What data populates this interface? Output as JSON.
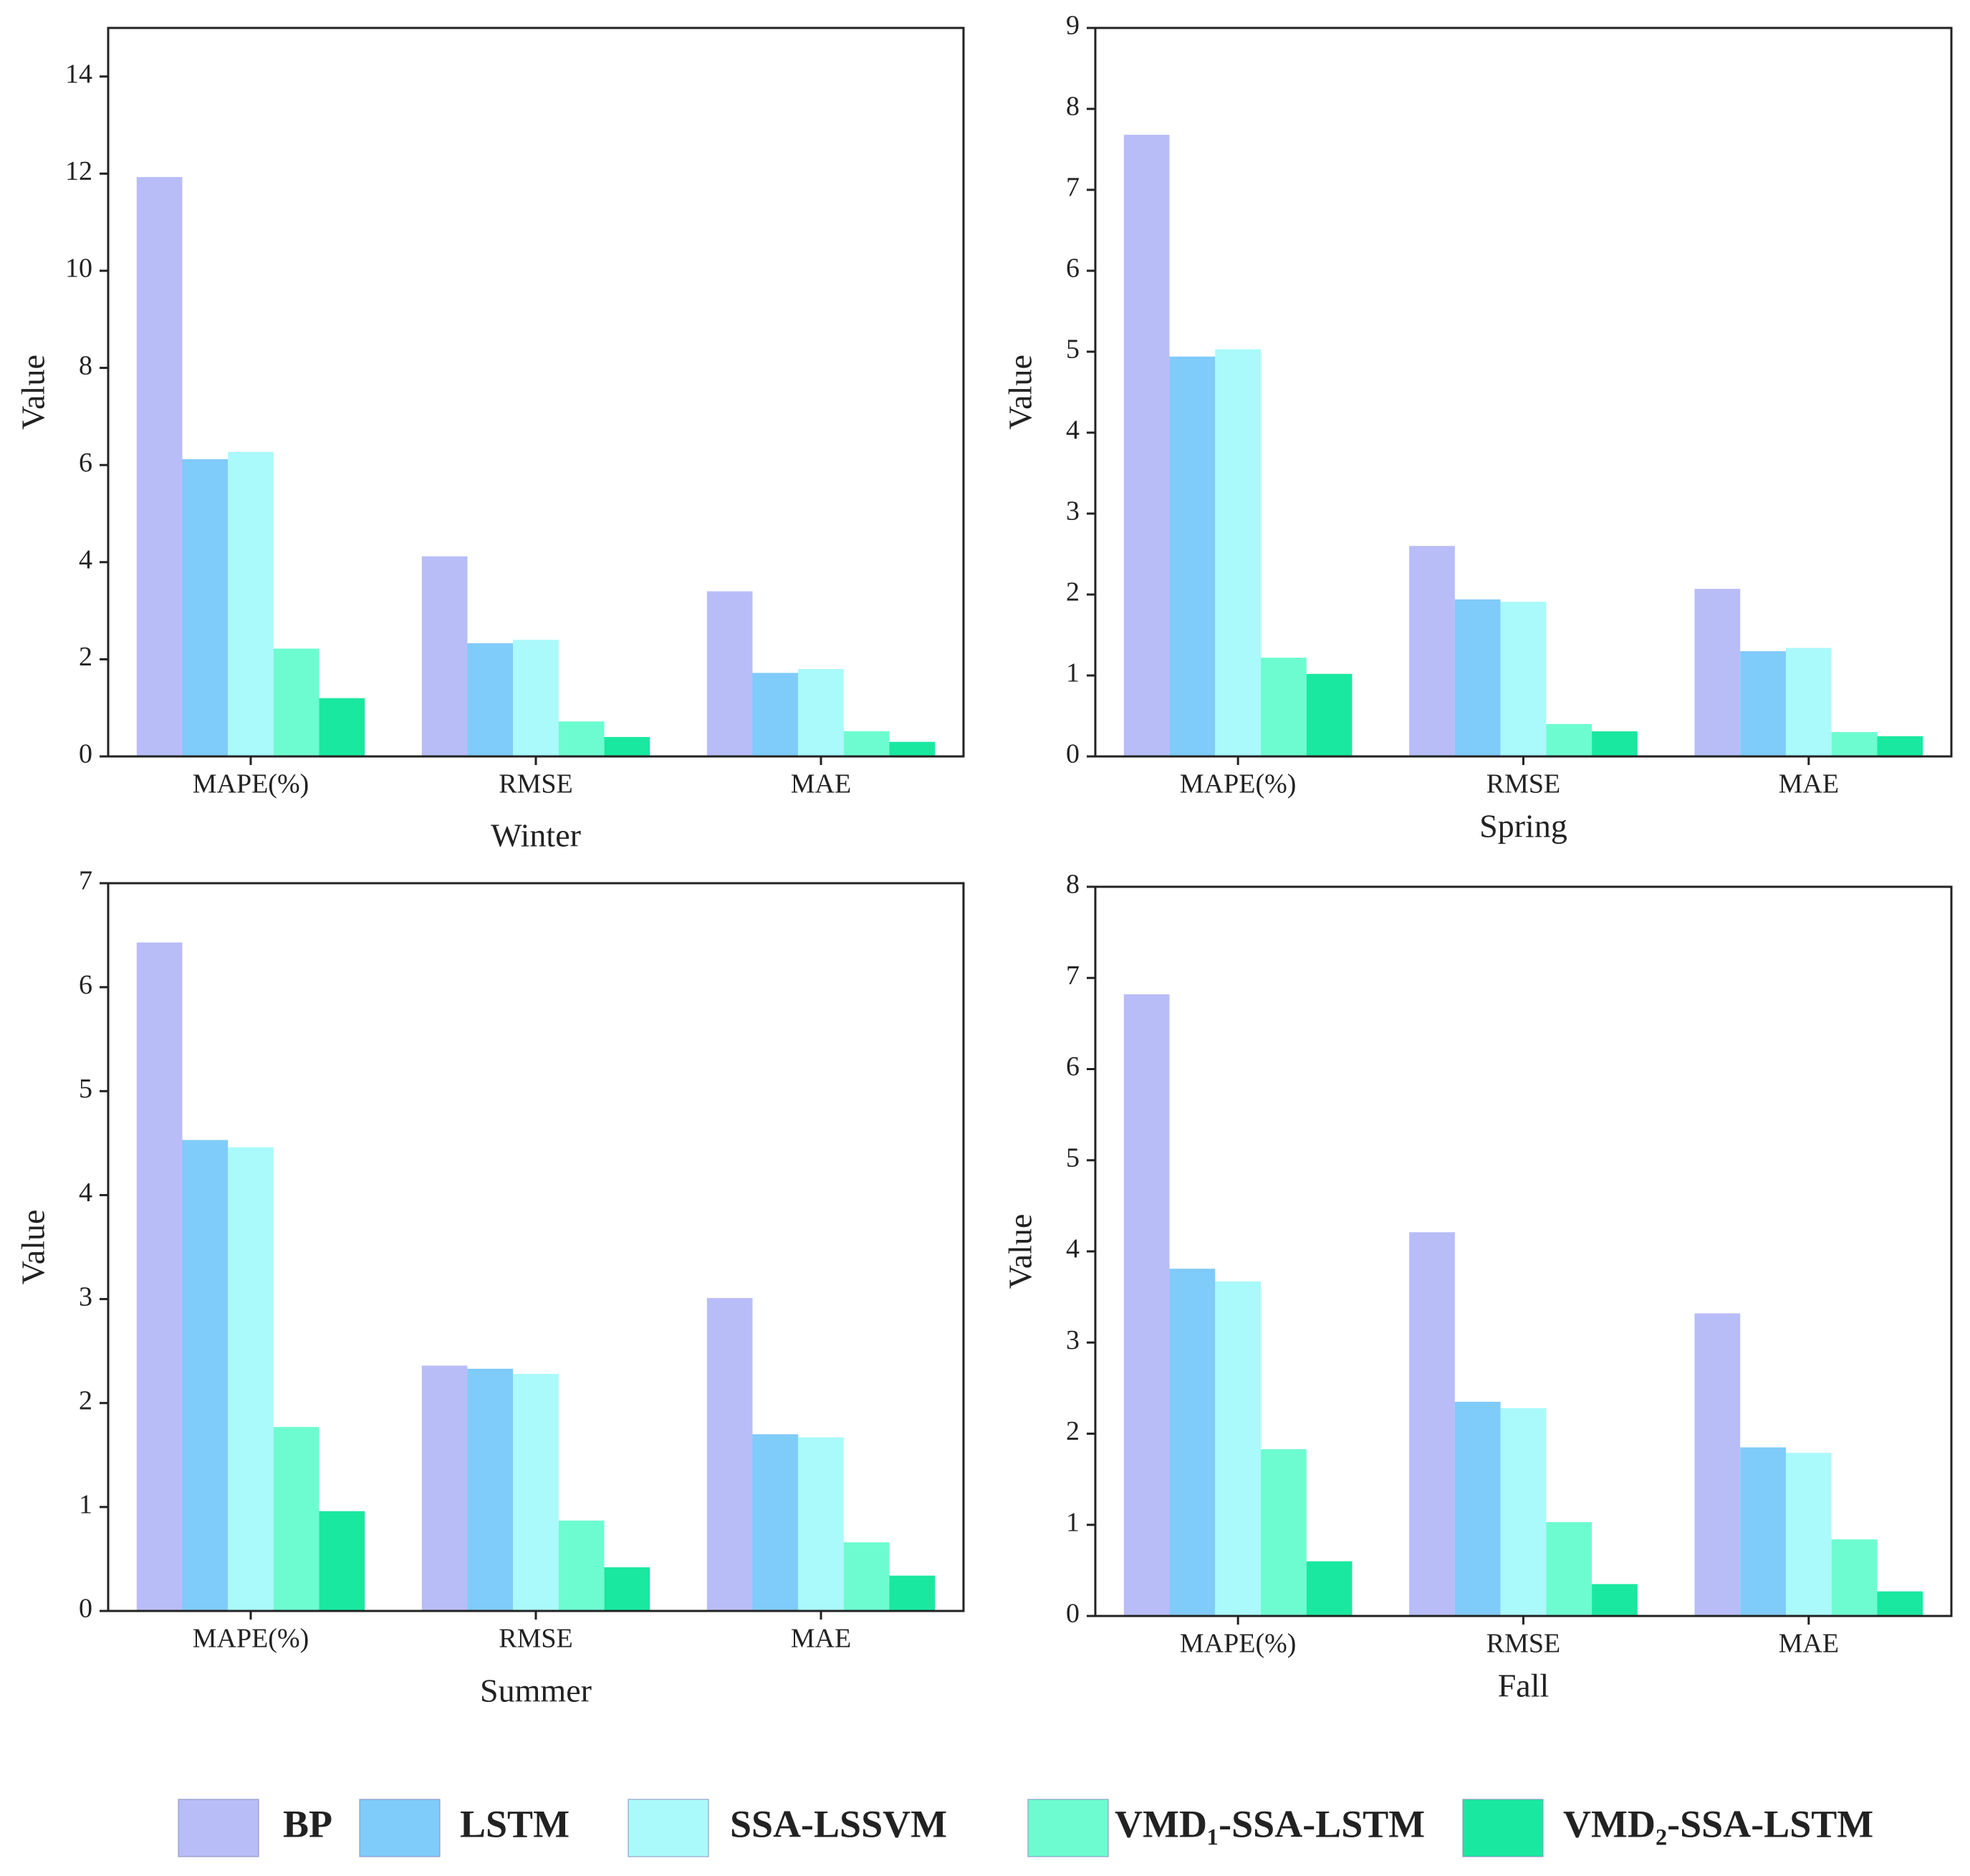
{
  "chart_data": [
    {
      "type": "bar",
      "xlabel": "Winter",
      "ylabel": "Value",
      "categories": [
        "MAPE(%)",
        "RMSE",
        "MAE"
      ],
      "ylim": [
        0,
        15
      ],
      "yticks": [
        0,
        2,
        4,
        6,
        8,
        10,
        12,
        14
      ],
      "series": [
        {
          "name": "BP",
          "color": "#b8bdf8",
          "values": [
            11.93,
            4.12,
            3.4
          ]
        },
        {
          "name": "LSTM",
          "color": "#7fcbf9",
          "values": [
            6.12,
            2.33,
            1.72
          ]
        },
        {
          "name": "SSA-LSSVM",
          "color": "#aaf9fb",
          "values": [
            6.27,
            2.4,
            1.8
          ]
        },
        {
          "name": "VMD₁-SSA-LSTM",
          "color": "#6dfcd0",
          "values": [
            2.22,
            0.72,
            0.52
          ]
        },
        {
          "name": "VMD₂-SSA-LSTM",
          "color": "#19e8a0",
          "values": [
            1.2,
            0.4,
            0.3
          ]
        }
      ]
    },
    {
      "type": "bar",
      "xlabel": "Spring",
      "ylabel": "Value",
      "categories": [
        "MAPE(%)",
        "RMSE",
        "MAE"
      ],
      "ylim": [
        0,
        9
      ],
      "yticks": [
        0,
        1,
        2,
        3,
        4,
        5,
        6,
        7,
        8,
        9
      ],
      "series": [
        {
          "name": "BP",
          "color": "#b8bdf8",
          "values": [
            7.68,
            2.6,
            2.07
          ]
        },
        {
          "name": "LSTM",
          "color": "#7fcbf9",
          "values": [
            4.94,
            1.94,
            1.3
          ]
        },
        {
          "name": "SSA-LSSVM",
          "color": "#aaf9fb",
          "values": [
            5.03,
            1.91,
            1.34
          ]
        },
        {
          "name": "VMD₁-SSA-LSTM",
          "color": "#6dfcd0",
          "values": [
            1.22,
            0.4,
            0.3
          ]
        },
        {
          "name": "VMD₂-SSA-LSTM",
          "color": "#19e8a0",
          "values": [
            1.02,
            0.31,
            0.25
          ]
        }
      ]
    },
    {
      "type": "bar",
      "xlabel": "Summer",
      "ylabel": "Value",
      "categories": [
        "MAPE(%)",
        "RMSE",
        "MAE"
      ],
      "ylim": [
        0,
        7
      ],
      "yticks": [
        0,
        1,
        2,
        3,
        4,
        5,
        6,
        7
      ],
      "series": [
        {
          "name": "BP",
          "color": "#b8bdf8",
          "values": [
            6.43,
            2.36,
            3.01
          ]
        },
        {
          "name": "LSTM",
          "color": "#7fcbf9",
          "values": [
            4.53,
            2.33,
            1.7
          ]
        },
        {
          "name": "SSA-LSSVM",
          "color": "#aaf9fb",
          "values": [
            4.46,
            2.28,
            1.67
          ]
        },
        {
          "name": "VMD₁-SSA-LSTM",
          "color": "#6dfcd0",
          "values": [
            1.77,
            0.87,
            0.66
          ]
        },
        {
          "name": "VMD₂-SSA-LSTM",
          "color": "#19e8a0",
          "values": [
            0.96,
            0.42,
            0.34
          ]
        }
      ]
    },
    {
      "type": "bar",
      "xlabel": "Fall",
      "ylabel": "Value",
      "categories": [
        "MAPE(%)",
        "RMSE",
        "MAE"
      ],
      "ylim": [
        0,
        8
      ],
      "yticks": [
        0,
        1,
        2,
        3,
        4,
        5,
        6,
        7,
        8
      ],
      "series": [
        {
          "name": "BP",
          "color": "#b8bdf8",
          "values": [
            6.82,
            4.21,
            3.32
          ]
        },
        {
          "name": "LSTM",
          "color": "#7fcbf9",
          "values": [
            3.81,
            2.35,
            1.85
          ]
        },
        {
          "name": "SSA-LSSVM",
          "color": "#aaf9fb",
          "values": [
            3.67,
            2.28,
            1.79
          ]
        },
        {
          "name": "VMD₁-SSA-LSTM",
          "color": "#6dfcd0",
          "values": [
            1.83,
            1.03,
            0.84
          ]
        },
        {
          "name": "VMD₂-SSA-LSTM",
          "color": "#19e8a0",
          "values": [
            0.6,
            0.35,
            0.27
          ]
        }
      ]
    }
  ]
}
